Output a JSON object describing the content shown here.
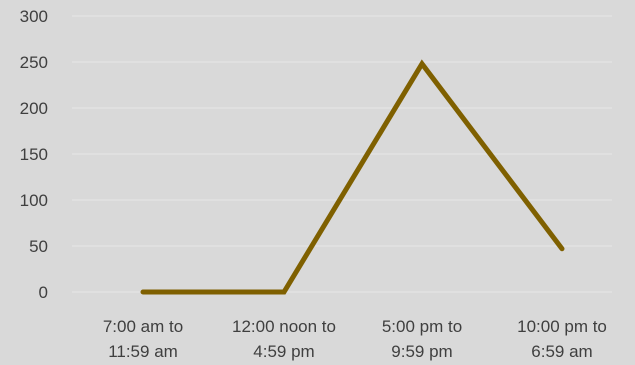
{
  "chart_data": {
    "type": "line",
    "title": "",
    "xlabel": "",
    "ylabel": "",
    "categories": [
      [
        "7:00 am to",
        "11:59 am"
      ],
      [
        "12:00 noon to",
        "4:59 pm"
      ],
      [
        "5:00 pm to",
        "9:59 pm"
      ],
      [
        "10:00 pm to",
        "6:59 am"
      ]
    ],
    "series": [
      {
        "values": [
          0,
          0,
          248,
          47
        ],
        "color": "#7f6000"
      }
    ],
    "ylim": [
      0,
      300
    ],
    "yticks": [
      0,
      50,
      100,
      150,
      200,
      250,
      300
    ],
    "grid": true,
    "legend": "none",
    "colors": {
      "background": "#d9d9d9",
      "gridline": "#e6e6e6",
      "tick_text": "#3f3f3f"
    }
  }
}
